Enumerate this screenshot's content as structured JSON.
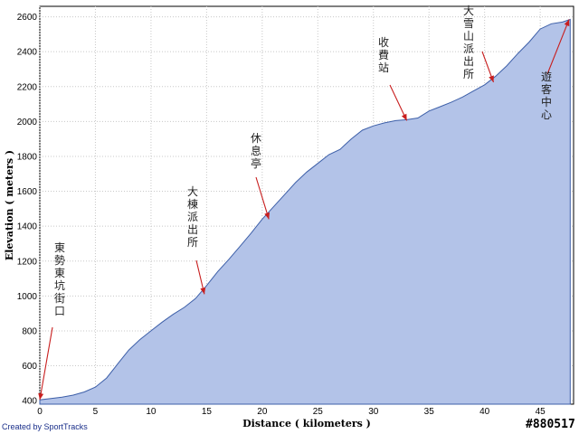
{
  "chart_data": {
    "type": "area",
    "xlabel": "Distance ( kilometers )",
    "ylabel": "Elevation ( meters )",
    "xlim": [
      0,
      48
    ],
    "ylim": [
      380,
      2660
    ],
    "xticks": [
      0,
      5,
      10,
      15,
      20,
      25,
      30,
      35,
      40,
      45
    ],
    "yticks": [
      400,
      600,
      800,
      1000,
      1200,
      1400,
      1600,
      1800,
      2000,
      2200,
      2400,
      2600
    ],
    "grid": true,
    "fill_color": "#b3c3e8",
    "line_color": "#3d5fa8",
    "x": [
      0,
      1,
      2,
      3,
      4,
      5,
      6,
      7,
      8,
      9,
      10,
      11,
      12,
      13,
      14,
      15,
      16,
      17,
      18,
      19,
      20,
      21,
      22,
      23,
      24,
      25,
      26,
      27,
      28,
      29,
      30,
      31,
      32,
      33,
      34,
      35,
      36,
      37,
      38,
      39,
      40,
      41,
      42,
      43,
      44,
      45,
      46,
      47,
      47.7
    ],
    "y": [
      405,
      412,
      420,
      432,
      450,
      478,
      530,
      610,
      690,
      750,
      800,
      850,
      895,
      935,
      985,
      1060,
      1140,
      1210,
      1285,
      1360,
      1440,
      1510,
      1580,
      1650,
      1710,
      1760,
      1810,
      1840,
      1900,
      1950,
      1975,
      1992,
      2005,
      2010,
      2020,
      2060,
      2085,
      2110,
      2140,
      2175,
      2210,
      2260,
      2320,
      2390,
      2455,
      2530,
      2560,
      2570,
      2585
    ],
    "annotations": [
      {
        "text": "東勢東坑街口",
        "x": 0,
        "y": 405
      },
      {
        "text": "大棟派出所",
        "x": 14.8,
        "y": 1010
      },
      {
        "text": "休息亭",
        "x": 20.6,
        "y": 1440
      },
      {
        "text": "收費站",
        "x": 33,
        "y": 2005
      },
      {
        "text": "大雪山派出所",
        "x": 40.8,
        "y": 2225
      },
      {
        "text": "遊客中心",
        "x": 47.6,
        "y": 2585
      }
    ]
  },
  "footer": {
    "credit": "Created by SportTracks",
    "watermark": "#880517"
  }
}
